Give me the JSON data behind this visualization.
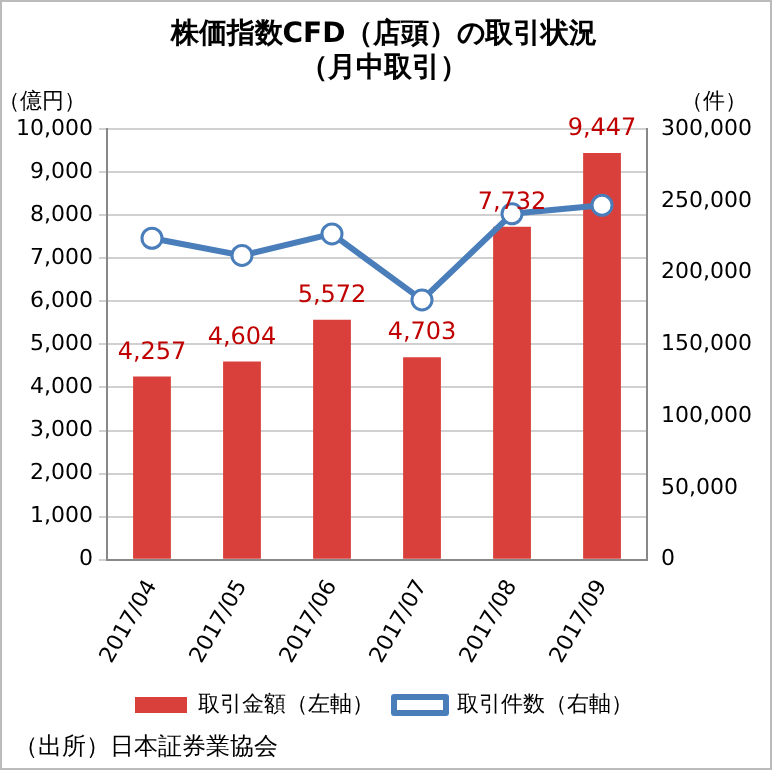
{
  "chart_data": {
    "type": "bar",
    "title": [
      "株価指数CFD（店頭）の取引状況",
      "（月中取引）"
    ],
    "ylabel": "（億円）",
    "y2label": "（件）",
    "categories": [
      "2017/04",
      "2017/05",
      "2017/06",
      "2017/07",
      "2017/08",
      "2017/09"
    ],
    "series": [
      {
        "name": "取引金額（左軸）",
        "color": "#d9403b",
        "values": [
          4257,
          4604,
          5572,
          4703,
          7732,
          9447
        ],
        "value_labels": [
          "4,257",
          "4,604",
          "5,572",
          "4,703",
          "7,732",
          "9,447"
        ]
      },
      {
        "name": "取引件数（右軸）",
        "type": "line",
        "axis": "y2",
        "color": "#4a7ebb",
        "values": [
          224000,
          212000,
          227000,
          181000,
          241000,
          247000
        ]
      }
    ],
    "ylim": [
      0,
      10000
    ],
    "yticks": [
      {
        "value": 0,
        "label": "0"
      },
      {
        "value": 1000,
        "label": "1,000"
      },
      {
        "value": 2000,
        "label": "2,000"
      },
      {
        "value": 3000,
        "label": "3,000"
      },
      {
        "value": 4000,
        "label": "4,000"
      },
      {
        "value": 5000,
        "label": "5,000"
      },
      {
        "value": 6000,
        "label": "6,000"
      },
      {
        "value": 7000,
        "label": "7,000"
      },
      {
        "value": 8000,
        "label": "8,000"
      },
      {
        "value": 9000,
        "label": "9,000"
      },
      {
        "value": 10000,
        "label": "10,000"
      }
    ],
    "y2lim": [
      0,
      300000
    ],
    "y2ticks": [
      {
        "value": 0,
        "label": "0"
      },
      {
        "value": 50000,
        "label": "50,000"
      },
      {
        "value": 100000,
        "label": "100,000"
      },
      {
        "value": 150000,
        "label": "150,000"
      },
      {
        "value": 200000,
        "label": "200,000"
      },
      {
        "value": 250000,
        "label": "250,000"
      },
      {
        "value": 300000,
        "label": "300,000"
      }
    ],
    "grid": "y",
    "legend": "bottom",
    "marker": "circle",
    "line_style": "solid",
    "annotations": [
      "（出所）日本証券業協会"
    ]
  }
}
